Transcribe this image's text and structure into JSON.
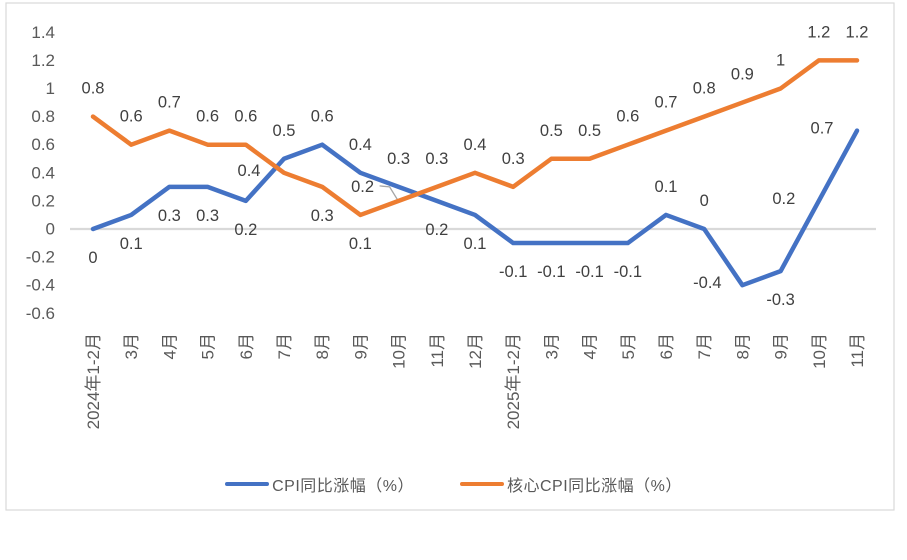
{
  "chart_data": {
    "type": "line",
    "title": "",
    "categories": [
      "2024年1-2月",
      "3月",
      "4月",
      "5月",
      "6月",
      "7月",
      "8月",
      "9月",
      "10月",
      "11月",
      "12月",
      "2025年1-2月",
      "3月",
      "4月",
      "5月",
      "6月",
      "7月",
      "8月",
      "9月",
      "10月",
      "11月"
    ],
    "series": [
      {
        "name": "CPI同比涨幅（%）",
        "color": "#4472C4",
        "values": [
          0,
          0.1,
          0.3,
          0.3,
          0.2,
          0.5,
          0.6,
          0.4,
          0.3,
          0.2,
          0.1,
          -0.1,
          -0.1,
          -0.1,
          -0.1,
          0.1,
          0,
          -0.4,
          -0.3,
          0.2,
          0.7
        ],
        "labels": [
          "0",
          "0.1",
          "0.3",
          "0.3",
          "0.2",
          "0.5",
          "0.6",
          "0.4",
          "0.3",
          "0.2",
          "0.1",
          "-0.1",
          "-0.1",
          "-0.1",
          "-0.1",
          "0.1",
          "0",
          "-0.4",
          "-0.3",
          "0.2",
          "0.7"
        ],
        "label_pos": [
          "below",
          "below",
          "below",
          "below",
          "below",
          "above",
          "above",
          "above",
          "above",
          "below",
          "below",
          "below",
          "below",
          "below",
          "below",
          "above",
          "above",
          "left",
          "below",
          "left",
          "left"
        ]
      },
      {
        "name": "核心CPI同比涨幅（%）",
        "color": "#ED7D31",
        "values": [
          0.8,
          0.6,
          0.7,
          0.6,
          0.6,
          0.4,
          0.3,
          0.1,
          0.2,
          0.3,
          0.4,
          0.3,
          0.5,
          0.5,
          0.6,
          0.7,
          0.8,
          0.9,
          1,
          1.2,
          1.2
        ],
        "labels": [
          "0.8",
          "0.6",
          "0.7",
          "0.6",
          "0.6",
          "0.4",
          "0.3",
          "0.1",
          "0.2",
          "0.3",
          "0.4",
          "0.3",
          "0.5",
          "0.5",
          "0.6",
          "0.7",
          "0.8",
          "0.9",
          "1",
          "1.2",
          "1.2"
        ],
        "label_pos": [
          "above",
          "above",
          "above",
          "above",
          "above",
          "left",
          "below",
          "below",
          "leader",
          "above",
          "above",
          "above",
          "above",
          "above",
          "above",
          "above",
          "above",
          "above",
          "above",
          "above",
          "above"
        ]
      }
    ],
    "y_axis": {
      "min": -0.6,
      "max": 1.4,
      "step": 0.2,
      "ticks": [
        "1.4",
        "1.2",
        "1",
        "0.8",
        "0.6",
        "0.4",
        "0.2",
        "0",
        "-0.2",
        "-0.4",
        "-0.6"
      ]
    },
    "x_axis": {
      "label_rotation": -90
    },
    "grid": "zero-line-only",
    "legend_position": "bottom",
    "colors": {
      "axis_line": "#D9D9D9",
      "chart_border": "#D9D9D9",
      "tick_text": "#595959",
      "category_text": "#595959",
      "data_label_text": "#404040",
      "leader_line": "#A6A6A6",
      "background": "#FFFFFF"
    }
  }
}
